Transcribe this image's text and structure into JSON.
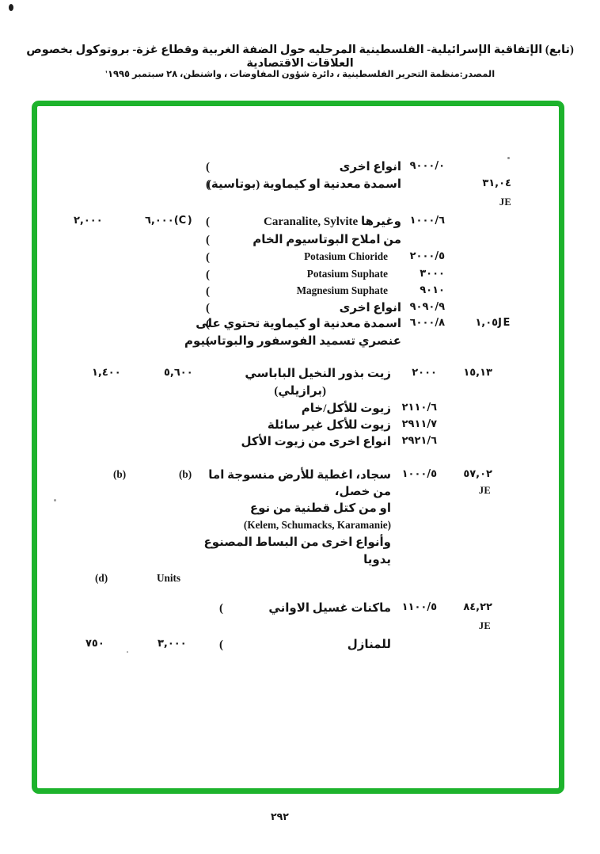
{
  "page": {
    "title": "(تابع) الإتفاقية الإسرائيلية- الفلسطينية المرحليه حول الضفة الغربية وقطاع غزة- بروتوكول بخصوص العلاقات الاقتصادية",
    "source_line": "المصدر:منظمة التحرير الفلسطينية ، دائرة شؤون المفاوضات ، واشنطن، ٢٨ سبتمبر ١٩٩٥'",
    "page_number": "٢٩٢",
    "frame_color": "#1db32c",
    "text_color": "#151515"
  },
  "table": {
    "rows": [
      {
        "id": "r1",
        "cells": [
          {
            "name": "item-code",
            "kind": "num",
            "col": "code1",
            "dir": "ltr",
            "text": "٩٠٠٠/٠"
          },
          {
            "name": "item-desc-ar",
            "kind": "desc",
            "col": "desc1",
            "dir": "rtl",
            "text": "انواع اخرى"
          },
          {
            "name": "group-paren",
            "kind": "paren",
            "col": "paren1",
            "dir": "ltr",
            "text": "("
          }
        ]
      },
      {
        "id": "r2",
        "cells": [
          {
            "name": "chapter-code",
            "kind": "num",
            "col": "chap1",
            "dir": "ltr",
            "text": "٣١,٠٤"
          },
          {
            "name": "item-desc-ar",
            "kind": "desc",
            "col": "desc1",
            "dir": "rtl",
            "text": "اسمدة معدنية او كيماوية (بوتاسية)"
          },
          {
            "name": "group-paren",
            "kind": "paren",
            "col": "paren1",
            "dir": "ltr",
            "text": "("
          }
        ]
      },
      {
        "id": "r3",
        "cells": [
          {
            "name": "je-marker",
            "kind": "je",
            "col": "chap1",
            "dir": "ltr",
            "text": "JE"
          }
        ]
      },
      {
        "id": "r4",
        "cells": [
          {
            "name": "quantity-secondary",
            "kind": "num",
            "col": "qtyA",
            "dir": "ltr",
            "text": "٢,٠٠٠"
          },
          {
            "name": "quantity-primary",
            "kind": "num",
            "col": "qtyB",
            "dir": "ltr",
            "text": "٦,٠٠٠(C)"
          },
          {
            "name": "group-paren",
            "kind": "paren",
            "col": "paren1",
            "dir": "ltr",
            "text": "("
          },
          {
            "name": "item-desc-mixed",
            "kind": "desc",
            "col": "desc1",
            "dir": "rtl",
            "text": "وغيرها Caranalite, Sylvite"
          },
          {
            "name": "item-code",
            "kind": "num",
            "col": "code1",
            "dir": "ltr",
            "text": "١٠٠٠/٦"
          }
        ]
      },
      {
        "id": "r5",
        "cells": [
          {
            "name": "group-paren",
            "kind": "paren",
            "col": "paren1",
            "dir": "ltr",
            "text": "("
          },
          {
            "name": "item-desc-ar",
            "kind": "desc",
            "col": "desc1",
            "dir": "rtl",
            "text": "من املاح البوتاسيوم الخام"
          }
        ]
      },
      {
        "id": "r6",
        "cells": [
          {
            "name": "group-paren",
            "kind": "paren",
            "col": "paren1",
            "dir": "ltr",
            "text": "("
          },
          {
            "name": "item-desc-en",
            "kind": "latin",
            "col": "desc1en",
            "dir": "ltr",
            "text": "Potasium Chioride"
          },
          {
            "name": "item-code",
            "kind": "num",
            "col": "code1",
            "dir": "ltr",
            "text": "٢٠٠٠/٥"
          }
        ]
      },
      {
        "id": "r7",
        "cells": [
          {
            "name": "group-paren",
            "kind": "paren",
            "col": "paren1",
            "dir": "ltr",
            "text": "("
          },
          {
            "name": "item-desc-en",
            "kind": "latin",
            "col": "desc1en",
            "dir": "ltr",
            "text": "Potasium Suphate"
          },
          {
            "name": "item-code",
            "kind": "num",
            "col": "code1",
            "dir": "ltr",
            "text": "٣٠٠٠"
          }
        ]
      },
      {
        "id": "r8",
        "cells": [
          {
            "name": "group-paren",
            "kind": "paren",
            "col": "paren1",
            "dir": "ltr",
            "text": "("
          },
          {
            "name": "item-desc-en",
            "kind": "latin",
            "col": "desc1en",
            "dir": "ltr",
            "text": "Magnesium Suphate"
          },
          {
            "name": "item-code",
            "kind": "num",
            "col": "code1",
            "dir": "ltr",
            "text": "٩٠١٠"
          }
        ]
      },
      {
        "id": "r9",
        "cells": [
          {
            "name": "group-paren",
            "kind": "paren",
            "col": "paren1",
            "dir": "ltr",
            "text": "("
          },
          {
            "name": "item-desc-ar",
            "kind": "desc",
            "col": "desc1",
            "dir": "rtl",
            "text": "انواع اخرى"
          },
          {
            "name": "item-code",
            "kind": "num",
            "col": "code1",
            "dir": "ltr",
            "text": "٩٠٩٠/٩"
          }
        ]
      },
      {
        "id": "r10",
        "cells": [
          {
            "name": "group-paren",
            "kind": "paren",
            "col": "paren1",
            "dir": "ltr",
            "text": "("
          },
          {
            "name": "item-desc-ar",
            "kind": "desc",
            "col": "desc1",
            "dir": "rtl",
            "text": "اسمدة معدنية او كيماوية تحتوي على"
          },
          {
            "name": "item-code",
            "kind": "num",
            "col": "code1",
            "dir": "ltr",
            "text": "٦٠٠٠/٨"
          },
          {
            "name": "chapter-code-je",
            "kind": "num",
            "col": "chap1",
            "dir": "ltr",
            "text": "١,٠٥JE"
          }
        ]
      },
      {
        "id": "r11",
        "cells": [
          {
            "name": "group-paren",
            "kind": "paren",
            "col": "paren1",
            "dir": "ltr",
            "text": "("
          },
          {
            "name": "item-desc-ar",
            "kind": "desc",
            "col": "desc1",
            "dir": "rtl",
            "text": "عنصري تسميد الفوسفور والبوتاسيوم"
          }
        ]
      },
      {
        "id": "r12",
        "cells": [
          {
            "name": "quantity-secondary",
            "kind": "num",
            "col": "qtyA",
            "dir": "ltr",
            "text": "١,٤٠٠"
          },
          {
            "name": "quantity-primary",
            "kind": "num",
            "col": "qtyB",
            "dir": "ltr",
            "text": "٥,٦٠٠"
          },
          {
            "name": "item-desc-ar",
            "kind": "desc",
            "col": "desc2",
            "dir": "rtl",
            "text": "زيت بذور النخيل الباباسي"
          },
          {
            "name": "item-code",
            "kind": "num",
            "col": "code2",
            "dir": "ltr",
            "text": "٢٠٠٠"
          },
          {
            "name": "chapter-code",
            "kind": "num",
            "col": "chap2",
            "dir": "ltr",
            "text": "١٥,١٣"
          }
        ]
      },
      {
        "id": "r13",
        "cells": [
          {
            "name": "item-desc-ar",
            "kind": "desc",
            "col": "desc2ind",
            "dir": "rtl",
            "text": "(برازيلي)"
          }
        ]
      },
      {
        "id": "r14",
        "cells": [
          {
            "name": "item-code",
            "kind": "num",
            "col": "code2",
            "dir": "ltr",
            "text": "٢١١٠/٦"
          },
          {
            "name": "item-desc-ar",
            "kind": "desc",
            "col": "desc2",
            "dir": "rtl",
            "text": "زيوت للأكل/خام"
          }
        ]
      },
      {
        "id": "r15",
        "cells": [
          {
            "name": "item-code",
            "kind": "num",
            "col": "code2",
            "dir": "ltr",
            "text": "٢٩١١/٧"
          },
          {
            "name": "item-desc-ar",
            "kind": "desc",
            "col": "desc2",
            "dir": "rtl",
            "text": "زيوت للأكل غير سائلة"
          }
        ]
      },
      {
        "id": "r16",
        "cells": [
          {
            "name": "item-code",
            "kind": "num",
            "col": "code2",
            "dir": "ltr",
            "text": "٢٩٢١/٦"
          },
          {
            "name": "item-desc-ar",
            "kind": "desc",
            "col": "desc2",
            "dir": "rtl",
            "text": "انواع اخرى من زيوت الأكل"
          }
        ]
      },
      {
        "id": "r17",
        "cells": [
          {
            "name": "quantity-secondary",
            "kind": "latin",
            "col": "qtyA",
            "dir": "ltr",
            "text": "(b)"
          },
          {
            "name": "quantity-primary",
            "kind": "latin",
            "col": "qtyB",
            "dir": "ltr",
            "text": "(b)"
          },
          {
            "name": "item-desc-ar",
            "kind": "desc",
            "col": "desc2",
            "dir": "rtl",
            "text": "سجاد، اغطية للأرض منسوجة اما"
          },
          {
            "name": "item-code",
            "kind": "num",
            "col": "code2",
            "dir": "ltr",
            "text": "١٠٠٠/٥"
          },
          {
            "name": "chapter-code",
            "kind": "num",
            "col": "chap2",
            "dir": "ltr",
            "text": "٥٧,٠٢"
          }
        ]
      },
      {
        "id": "r18",
        "cells": [
          {
            "name": "je-marker",
            "kind": "je",
            "col": "je2",
            "dir": "ltr",
            "text": "JE"
          },
          {
            "name": "item-desc-ar",
            "kind": "desc",
            "col": "desc2",
            "dir": "rtl",
            "text": "من خصل،"
          }
        ]
      },
      {
        "id": "r19",
        "cells": [
          {
            "name": "item-desc-ar",
            "kind": "desc",
            "col": "desc2",
            "dir": "rtl",
            "text": "او من كتل قطنية من نوع"
          }
        ]
      },
      {
        "id": "r20",
        "cells": [
          {
            "name": "item-desc-en",
            "kind": "latin",
            "col": "desc2",
            "dir": "ltr",
            "text": "(Kelem, Schumacks, Karamanie)"
          }
        ]
      },
      {
        "id": "r21",
        "cells": [
          {
            "name": "item-desc-ar",
            "kind": "desc",
            "col": "desc2",
            "dir": "rtl",
            "text": "وأنواع اخرى من البساط المصنوع"
          }
        ]
      },
      {
        "id": "r22",
        "cells": [
          {
            "name": "item-desc-ar",
            "kind": "desc",
            "col": "desc2",
            "dir": "rtl",
            "text": "يدويا"
          }
        ]
      },
      {
        "id": "r23",
        "cells": [
          {
            "name": "note-marker",
            "kind": "latin",
            "col": "qtyA",
            "dir": "ltr",
            "text": "(d)"
          },
          {
            "name": "units-label",
            "kind": "latin",
            "col": "qtyB",
            "dir": "ltr",
            "text": "Units"
          }
        ]
      },
      {
        "id": "r24",
        "cells": [
          {
            "name": "chapter-code",
            "kind": "num",
            "col": "chap2",
            "dir": "ltr",
            "text": "٨٤,٢٢"
          },
          {
            "name": "item-code",
            "kind": "num",
            "col": "code2",
            "dir": "ltr",
            "text": "١١٠٠/٥"
          },
          {
            "name": "item-desc-ar",
            "kind": "desc",
            "col": "desc2",
            "dir": "rtl",
            "text": "ماكنات غسيل الاواني"
          },
          {
            "name": "group-paren",
            "kind": "paren",
            "col": "paren2",
            "dir": "ltr",
            "text": "("
          }
        ]
      },
      {
        "id": "r25",
        "cells": [
          {
            "name": "je-marker",
            "kind": "je",
            "col": "je2",
            "dir": "ltr",
            "text": "JE"
          }
        ]
      },
      {
        "id": "r26",
        "cells": [
          {
            "name": "item-desc-ar",
            "kind": "desc",
            "col": "desc2",
            "dir": "rtl",
            "text": "للمنازل"
          },
          {
            "name": "group-paren",
            "kind": "paren",
            "col": "paren2",
            "dir": "ltr",
            "text": "("
          },
          {
            "name": "quantity-primary",
            "kind": "num",
            "col": "qtyB",
            "dir": "ltr",
            "text": "٣,٠٠٠"
          },
          {
            "name": "quantity-secondary",
            "kind": "num",
            "col": "qtyA",
            "dir": "ltr",
            "text": "٧٥٠"
          }
        ]
      }
    ]
  }
}
